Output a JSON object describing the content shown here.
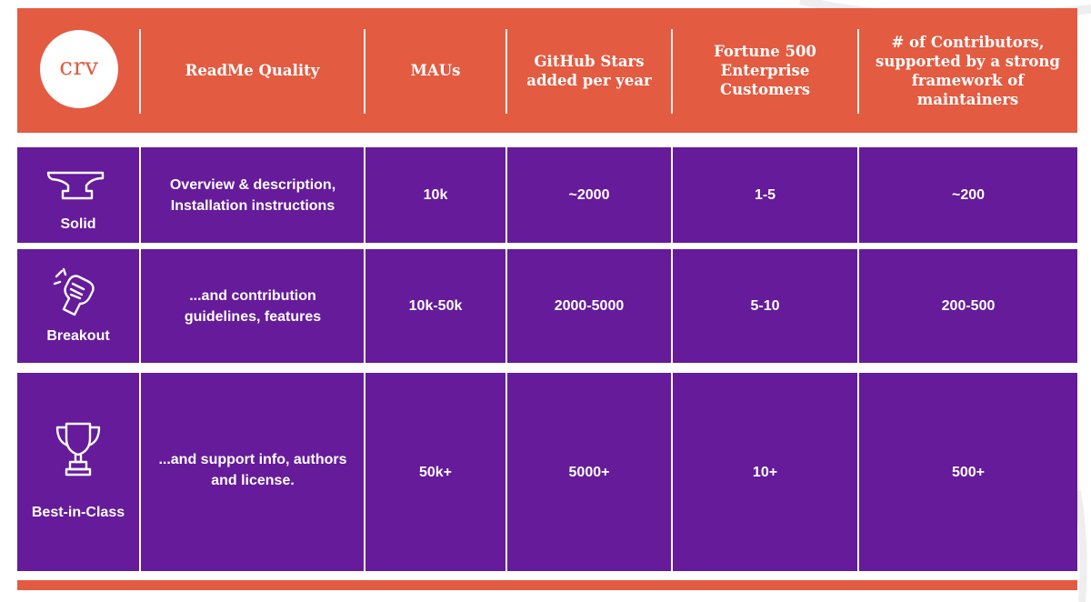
{
  "logo": {
    "text": "crv"
  },
  "header": {
    "columns": [
      "ReadMe Quality",
      "MAUs",
      "GitHub Stars added per year",
      "Fortune 500 Enterprise Customers",
      "# of Contributors, supported by a strong framework of maintainers"
    ]
  },
  "rows": [
    {
      "tier": "Solid",
      "icon": "anvil-icon",
      "readme": "Overview & description, Installation instructions",
      "maus": "10k",
      "stars": "~2000",
      "fortune": "1-5",
      "contributors": "~200"
    },
    {
      "tier": "Breakout",
      "icon": "raised-fist-icon",
      "readme": "...and contribution guidelines, features",
      "maus": "10k-50k",
      "stars": "2000-5000",
      "fortune": "5-10",
      "contributors": "200-500"
    },
    {
      "tier": "Best-in-Class",
      "icon": "trophy-icon",
      "readme": "...and support info, authors and license.",
      "maus": "50k+",
      "stars": "5000+",
      "fortune": "10+",
      "contributors": "500+"
    }
  ],
  "colors": {
    "header_bg": "#e35b41",
    "row_bg": "#651b9a",
    "text": "#ffffff"
  }
}
